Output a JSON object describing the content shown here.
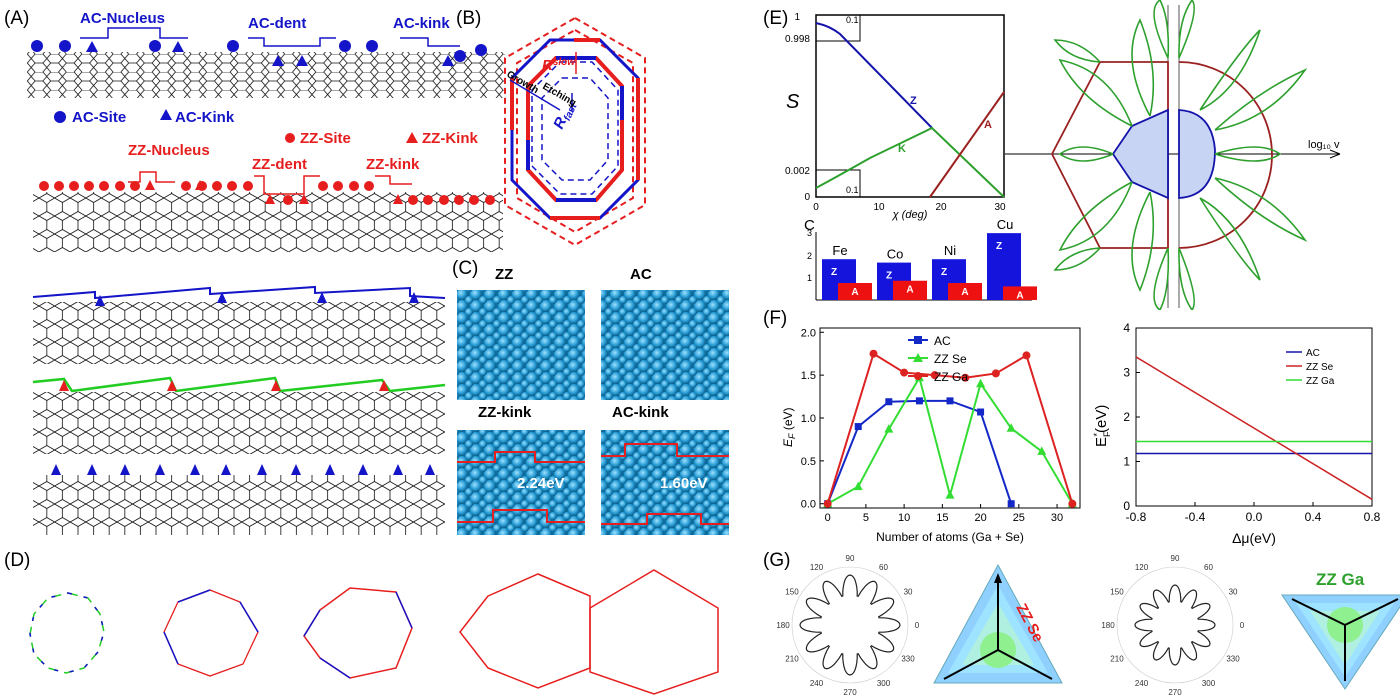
{
  "panels": {
    "A": {
      "label": "(A)",
      "ac_nucleus": "AC-Nucleus",
      "ac_dent": "AC-dent",
      "ac_kink": "AC-kink",
      "ac_site_legend": "AC-Site",
      "ac_kink_legend": "AC-Kink",
      "zz_site_legend": "ZZ-Site",
      "zz_kink_legend": "ZZ-Kink",
      "zz_nucleus": "ZZ-Nucleus",
      "zz_dent": "ZZ-dent",
      "zz_kink": "ZZ-kink"
    },
    "B": {
      "label": "(B)",
      "r_slow": "R",
      "r_slow_sub": "slow",
      "r_fast": "R",
      "r_fast_sub": "fast",
      "growth": "Growth",
      "etching": "Etching"
    },
    "C": {
      "label": "(C)",
      "zz": "ZZ",
      "ac": "AC",
      "zz_kink": "ZZ-kink",
      "ac_kink": "AC-kink",
      "zz_kink_energy": "2.24eV",
      "ac_kink_energy": "1.60eV"
    },
    "D": {
      "label": "(D)"
    },
    "E": {
      "label": "(E)",
      "ylabel": "S",
      "xlabel": "χ (deg)",
      "y_ticks": [
        "1",
        "0.998",
        "0.002",
        "0"
      ],
      "x_ticks": [
        "0",
        "10",
        "20",
        "30"
      ],
      "inset_tick_top": "0.1",
      "inset_tick_bottom": "0.1",
      "curve_z": "Z",
      "curve_k": "K",
      "curve_a": "A",
      "log_label": "log₁₀ v",
      "bar_panel_label": "C",
      "bar_y_ticks": [
        "3",
        "2",
        "1"
      ],
      "metals": [
        "Fe",
        "Co",
        "Ni",
        "Cu"
      ],
      "bar_z": "Z",
      "bar_a": "A"
    },
    "F": {
      "label": "(F)",
      "left_ylabel": "E",
      "left_ylabel_sub": "F",
      "left_ylabel_unit": " (eV)",
      "left_xlabel": "Number of atoms (Ga + Se)",
      "left_x_ticks": [
        "0",
        "5",
        "10",
        "15",
        "20",
        "25",
        "30"
      ],
      "left_y_ticks": [
        "0.0",
        "0.5",
        "1.0",
        "1.5",
        "2.0"
      ],
      "right_ylabel": "E",
      "right_ylabel_sub": "F",
      "right_ylabel_sup": "*",
      "right_ylabel_unit": "(eV)",
      "right_xlabel": "Δμ(eV)",
      "right_x_ticks": [
        "-0.8",
        "-0.4",
        "0.0",
        "0.4",
        "0.8"
      ],
      "right_y_ticks": [
        "0",
        "1",
        "2",
        "3",
        "4"
      ]
    },
    "G": {
      "label": "(G)",
      "polar_angles": [
        "90",
        "60",
        "30",
        "0",
        "330",
        "300",
        "270",
        "240",
        "210",
        "180",
        "150",
        "120"
      ],
      "zz_se": "ZZ Se",
      "zz_ga": "ZZ Ga"
    }
  },
  "colors": {
    "ac_blue": "#1414c8",
    "zz_red": "#e61e1e",
    "green": "#22cc22",
    "dark_red": "#9b2020",
    "plot_green": "#2ea02e",
    "atom_blue": "#2a9fd6"
  },
  "chart_data": [
    {
      "type": "line",
      "title": "",
      "xlabel": "Number of atoms (Ga + Se)",
      "ylabel": "E_F (eV)",
      "xlim": [
        -1,
        33
      ],
      "ylim": [
        -0.05,
        2.05
      ],
      "legend": "top-center",
      "series": [
        {
          "name": "AC",
          "color": "#1428c8",
          "marker": "square",
          "x": [
            0,
            4,
            8,
            12,
            16,
            20,
            24
          ],
          "y": [
            0,
            0.9,
            1.19,
            1.2,
            1.2,
            1.07,
            0
          ]
        },
        {
          "name": "ZZ Se",
          "color": "#33dd33",
          "marker": "triangle",
          "x": [
            0,
            4,
            8,
            12,
            16,
            20,
            24,
            28,
            32
          ],
          "y": [
            0,
            0.2,
            0.87,
            1.47,
            0.1,
            1.4,
            0.88,
            0.61,
            0
          ]
        },
        {
          "name": "ZZ Ga",
          "color": "#dd2222",
          "marker": "circle",
          "x": [
            0,
            6,
            10,
            14,
            18,
            22,
            26,
            32
          ],
          "y": [
            0,
            1.75,
            1.53,
            1.5,
            1.47,
            1.52,
            1.73,
            0
          ]
        }
      ]
    },
    {
      "type": "line",
      "title": "",
      "xlabel": "Δμ(eV)",
      "ylabel": "E_F* (eV)",
      "xlim": [
        -0.8,
        0.8
      ],
      "ylim": [
        0,
        4
      ],
      "legend": "top-right",
      "series": [
        {
          "name": "AC",
          "color": "#1414aa",
          "x": [
            -0.8,
            0.8
          ],
          "y": [
            1.18,
            1.18
          ]
        },
        {
          "name": "ZZ Se",
          "color": "#cc2222",
          "x": [
            -0.8,
            0.8
          ],
          "y": [
            3.35,
            0.15
          ]
        },
        {
          "name": "ZZ Ga",
          "color": "#33dd33",
          "x": [
            -0.8,
            0.8
          ],
          "y": [
            1.45,
            1.45
          ]
        }
      ]
    },
    {
      "type": "bar",
      "title": "",
      "categories": [
        "Fe",
        "Co",
        "Ni",
        "Cu"
      ],
      "ylim": [
        0,
        3
      ],
      "series": [
        {
          "name": "Z",
          "color": "#1414dd",
          "values": [
            1.8,
            1.65,
            1.8,
            2.95
          ]
        },
        {
          "name": "A",
          "color": "#ee1111",
          "values": [
            0.75,
            0.85,
            0.75,
            0.6
          ]
        }
      ]
    }
  ]
}
